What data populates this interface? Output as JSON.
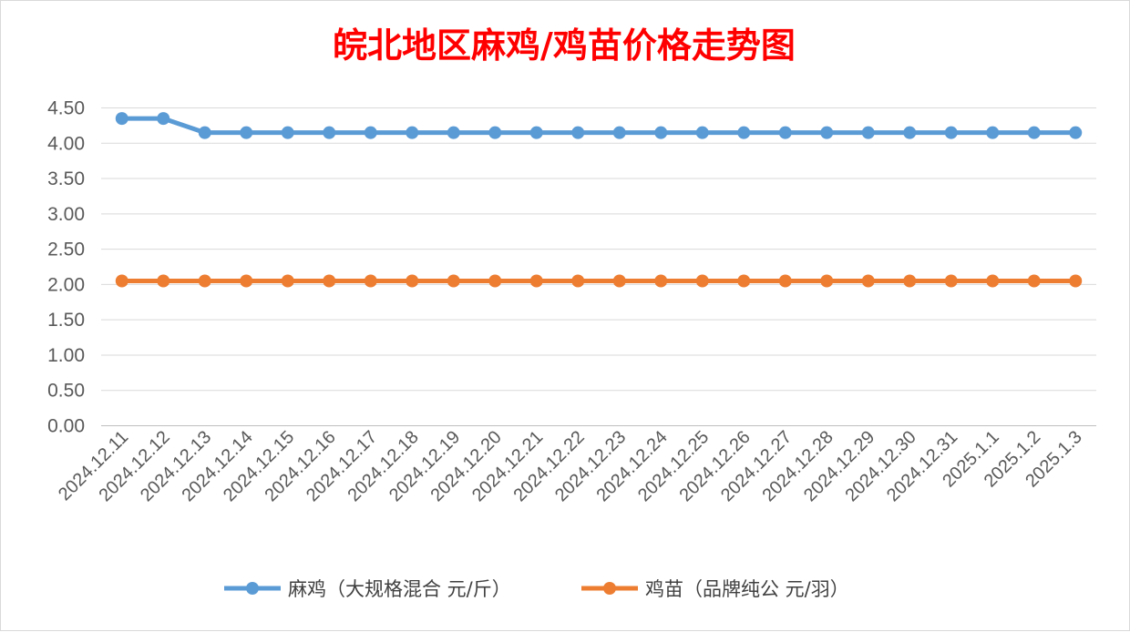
{
  "chart_data": {
    "type": "line",
    "title": "皖北地区麻鸡/鸡苗价格走势图",
    "title_color": "#ff0000",
    "categories": [
      "2024.12.11",
      "2024.12.12",
      "2024.12.13",
      "2024.12.14",
      "2024.12.15",
      "2024.12.16",
      "2024.12.17",
      "2024.12.18",
      "2024.12.19",
      "2024.12.20",
      "2024.12.21",
      "2024.12.22",
      "2024.12.23",
      "2024.12.24",
      "2024.12.25",
      "2024.12.26",
      "2024.12.27",
      "2024.12.28",
      "2024.12.29",
      "2024.12.30",
      "2024.12.31",
      "2025.1.1",
      "2025.1.2",
      "2025.1.3"
    ],
    "series": [
      {
        "name": "麻鸡（大规格混合 元/斤）",
        "color": "#5b9bd5",
        "values": [
          4.35,
          4.35,
          4.15,
          4.15,
          4.15,
          4.15,
          4.15,
          4.15,
          4.15,
          4.15,
          4.15,
          4.15,
          4.15,
          4.15,
          4.15,
          4.15,
          4.15,
          4.15,
          4.15,
          4.15,
          4.15,
          4.15,
          4.15,
          4.15
        ]
      },
      {
        "name": "鸡苗（品牌纯公 元/羽）",
        "color": "#ed7d31",
        "values": [
          2.05,
          2.05,
          2.05,
          2.05,
          2.05,
          2.05,
          2.05,
          2.05,
          2.05,
          2.05,
          2.05,
          2.05,
          2.05,
          2.05,
          2.05,
          2.05,
          2.05,
          2.05,
          2.05,
          2.05,
          2.05,
          2.05,
          2.05,
          2.05
        ]
      }
    ],
    "yticks": [
      "0.00",
      "0.50",
      "1.00",
      "1.50",
      "2.00",
      "2.50",
      "3.00",
      "3.50",
      "4.00",
      "4.50"
    ],
    "ylim": [
      0,
      4.5
    ],
    "grid": true,
    "legend_position": "bottom"
  }
}
